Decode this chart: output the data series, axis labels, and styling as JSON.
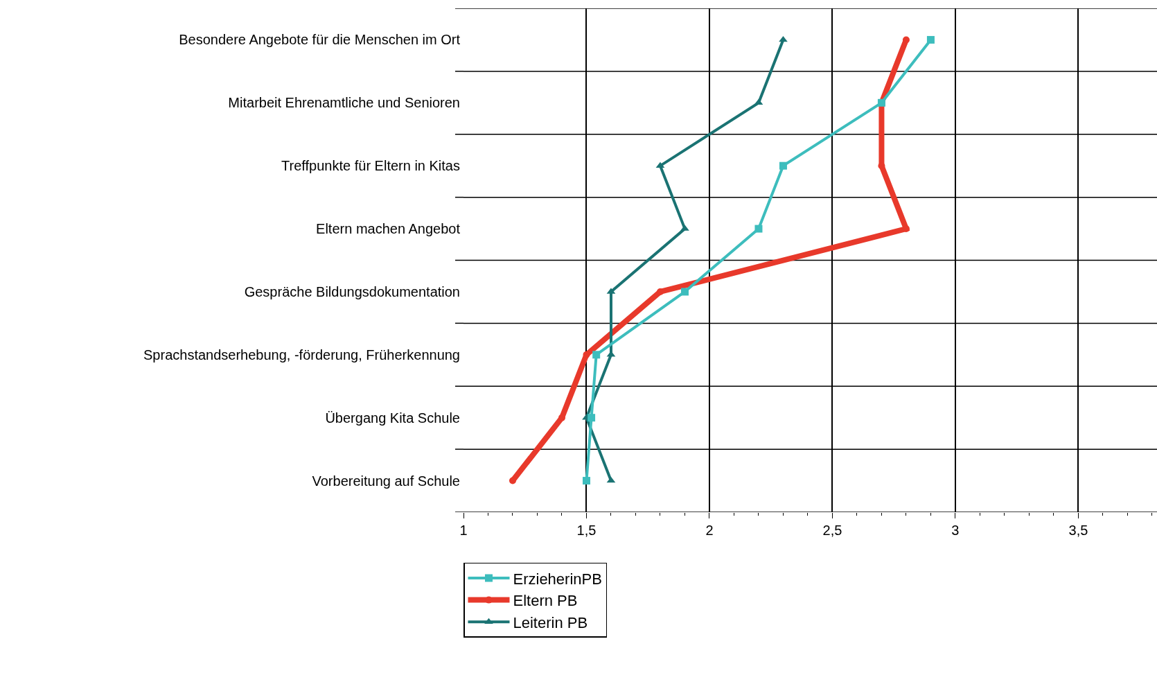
{
  "chart_data": {
    "type": "line",
    "orientation": "horizontal",
    "categories": [
      "Besondere Angebote für die Menschen im Ort",
      "Mitarbeit Ehrenamtliche und Senioren",
      "Treffpunkte für Eltern in Kitas",
      "Eltern machen Angebot",
      "Gespräche Bildungsdokumentation",
      "Sprachstandserhebung, -förderung, Früherkennung",
      "Übergang Kita Schule",
      "Vorbereitung auf Schule"
    ],
    "series": [
      {
        "name": "ErzieherinPB",
        "color": "#3dbdbd",
        "marker": "square",
        "values": [
          2.9,
          2.7,
          2.3,
          2.2,
          1.9,
          1.54,
          1.52,
          1.5
        ]
      },
      {
        "name": "Eltern PB",
        "color": "#e8392b",
        "marker": "circle",
        "values": [
          2.8,
          2.7,
          2.7,
          2.8,
          1.8,
          1.5,
          1.4,
          1.2
        ]
      },
      {
        "name": "Leiterin PB",
        "color": "#1a7373",
        "marker": "triangle",
        "values": [
          2.3,
          2.2,
          1.8,
          1.9,
          1.6,
          1.6,
          1.5,
          1.6
        ]
      }
    ],
    "xlim": [
      1,
      3.82
    ],
    "xticks": [
      1,
      {
        "value": 1.1,
        "label": null
      },
      {
        "value": 1.2,
        "label": null
      },
      {
        "value": 1.3,
        "label": null
      },
      {
        "value": 1.4,
        "label": null
      },
      {
        "value": 1.5,
        "label": "1,5"
      },
      {
        "value": 1.6,
        "label": null
      },
      {
        "value": 1.7,
        "label": null
      },
      {
        "value": 1.8,
        "label": null
      },
      {
        "value": 1.9,
        "label": null
      },
      2,
      {
        "value": 2.1,
        "label": null
      },
      {
        "value": 2.2,
        "label": null
      },
      {
        "value": 2.3,
        "label": null
      },
      {
        "value": 2.4,
        "label": null
      },
      {
        "value": 2.5,
        "label": "2,5"
      },
      {
        "value": 2.6,
        "label": null
      },
      {
        "value": 2.7,
        "label": null
      },
      {
        "value": 2.8,
        "label": null
      },
      {
        "value": 2.9,
        "label": null
      },
      3,
      {
        "value": 3.1,
        "label": null
      },
      {
        "value": 3.2,
        "label": null
      },
      {
        "value": 3.3,
        "label": null
      },
      {
        "value": 3.4,
        "label": null
      },
      {
        "value": 3.5,
        "label": "3,5"
      },
      {
        "value": 3.6,
        "label": null
      },
      {
        "value": 3.7,
        "label": null
      },
      {
        "value": 3.8,
        "label": null
      }
    ],
    "grid": true,
    "legend": "bottom",
    "line_style": "solid"
  }
}
